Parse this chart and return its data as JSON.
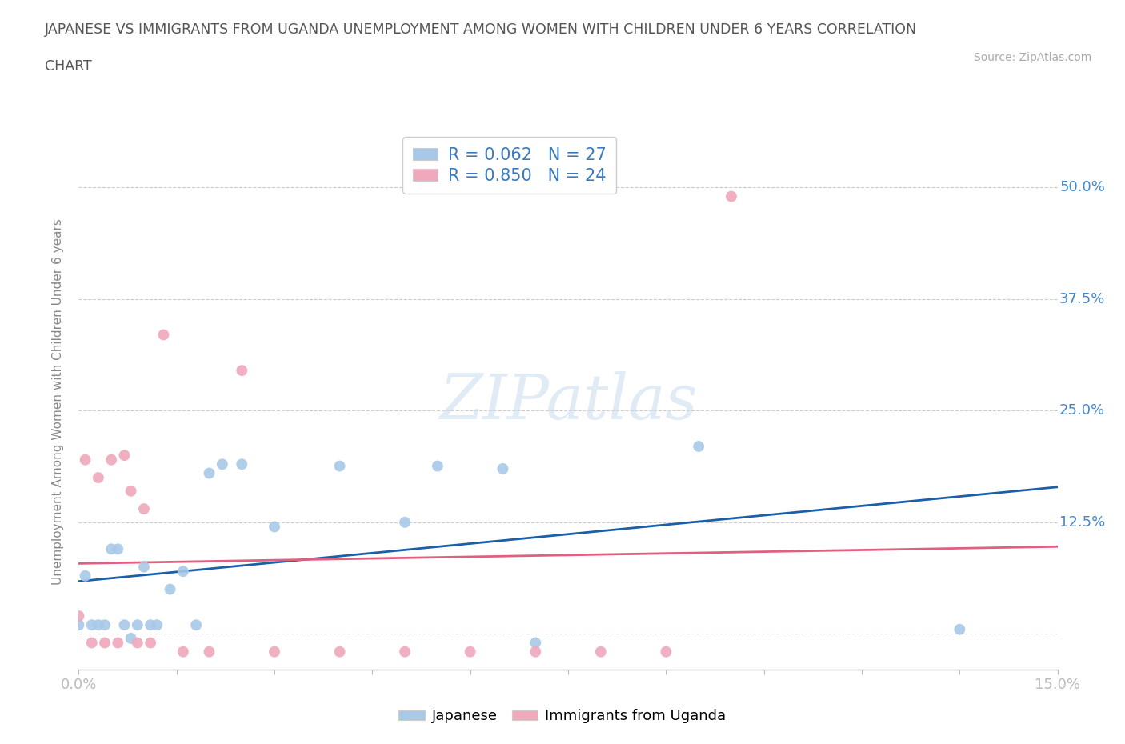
{
  "title_line1": "JAPANESE VS IMMIGRANTS FROM UGANDA UNEMPLOYMENT AMONG WOMEN WITH CHILDREN UNDER 6 YEARS CORRELATION",
  "title_line2": "CHART",
  "source": "Source: ZipAtlas.com",
  "ylabel": "Unemployment Among Women with Children Under 6 years",
  "watermark": "ZIPatlas",
  "japanese_color": "#a8c8e8",
  "uganda_color": "#f0a8bc",
  "japanese_line_color": "#1a5fa8",
  "uganda_line_color": "#e06080",
  "legend_r_japanese": "R = 0.062",
  "legend_n_japanese": "N = 27",
  "legend_r_uganda": "R = 0.850",
  "legend_n_uganda": "N = 24",
  "xlim": [
    0.0,
    0.15
  ],
  "ylim": [
    -0.03,
    0.55
  ],
  "japanese_x": [
    0.0,
    0.001,
    0.002,
    0.003,
    0.004,
    0.005,
    0.006,
    0.007,
    0.008,
    0.009,
    0.01,
    0.011,
    0.012,
    0.014,
    0.016,
    0.018,
    0.02,
    0.022,
    0.025,
    0.03,
    0.04,
    0.05,
    0.055,
    0.065,
    0.07,
    0.095,
    0.135
  ],
  "japanese_y": [
    0.01,
    0.065,
    0.01,
    0.01,
    0.01,
    0.095,
    0.095,
    0.01,
    -0.005,
    0.01,
    0.075,
    0.01,
    0.01,
    0.05,
    0.07,
    0.01,
    0.18,
    0.19,
    0.19,
    0.12,
    0.188,
    0.125,
    0.188,
    0.185,
    -0.01,
    0.21,
    0.005
  ],
  "uganda_x": [
    0.0,
    0.001,
    0.002,
    0.003,
    0.004,
    0.005,
    0.006,
    0.007,
    0.008,
    0.009,
    0.01,
    0.011,
    0.013,
    0.016,
    0.02,
    0.025,
    0.03,
    0.04,
    0.05,
    0.06,
    0.07,
    0.08,
    0.09,
    0.1
  ],
  "uganda_y": [
    0.02,
    0.195,
    -0.01,
    0.175,
    -0.01,
    0.195,
    -0.01,
    0.2,
    0.16,
    -0.01,
    0.14,
    -0.01,
    0.335,
    -0.02,
    -0.02,
    0.295,
    -0.02,
    -0.02,
    -0.02,
    -0.02,
    -0.02,
    -0.02,
    -0.02,
    0.49
  ]
}
